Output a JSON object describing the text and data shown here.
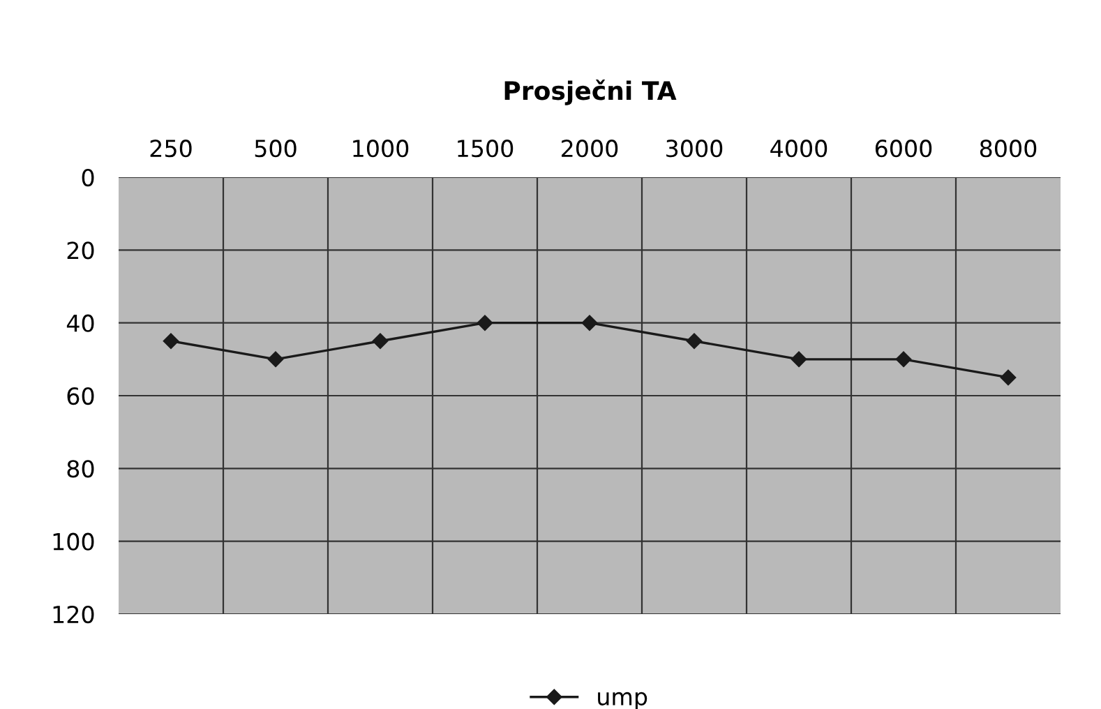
{
  "chart_data": {
    "type": "line",
    "title": "Prosječni TA",
    "categories": [
      "250",
      "500",
      "1000",
      "1500",
      "2000",
      "3000",
      "4000",
      "6000",
      "8000"
    ],
    "series": [
      {
        "name": "ump",
        "color": "#1a1a1a",
        "values": [
          45,
          50,
          45,
          40,
          40,
          45,
          50,
          50,
          55
        ]
      }
    ],
    "ylim": [
      120,
      0
    ],
    "yticks": [
      0,
      20,
      40,
      60,
      80,
      100,
      120
    ],
    "grid": true,
    "legend": "bottom",
    "marker": "diamond",
    "line_style": "solid"
  }
}
